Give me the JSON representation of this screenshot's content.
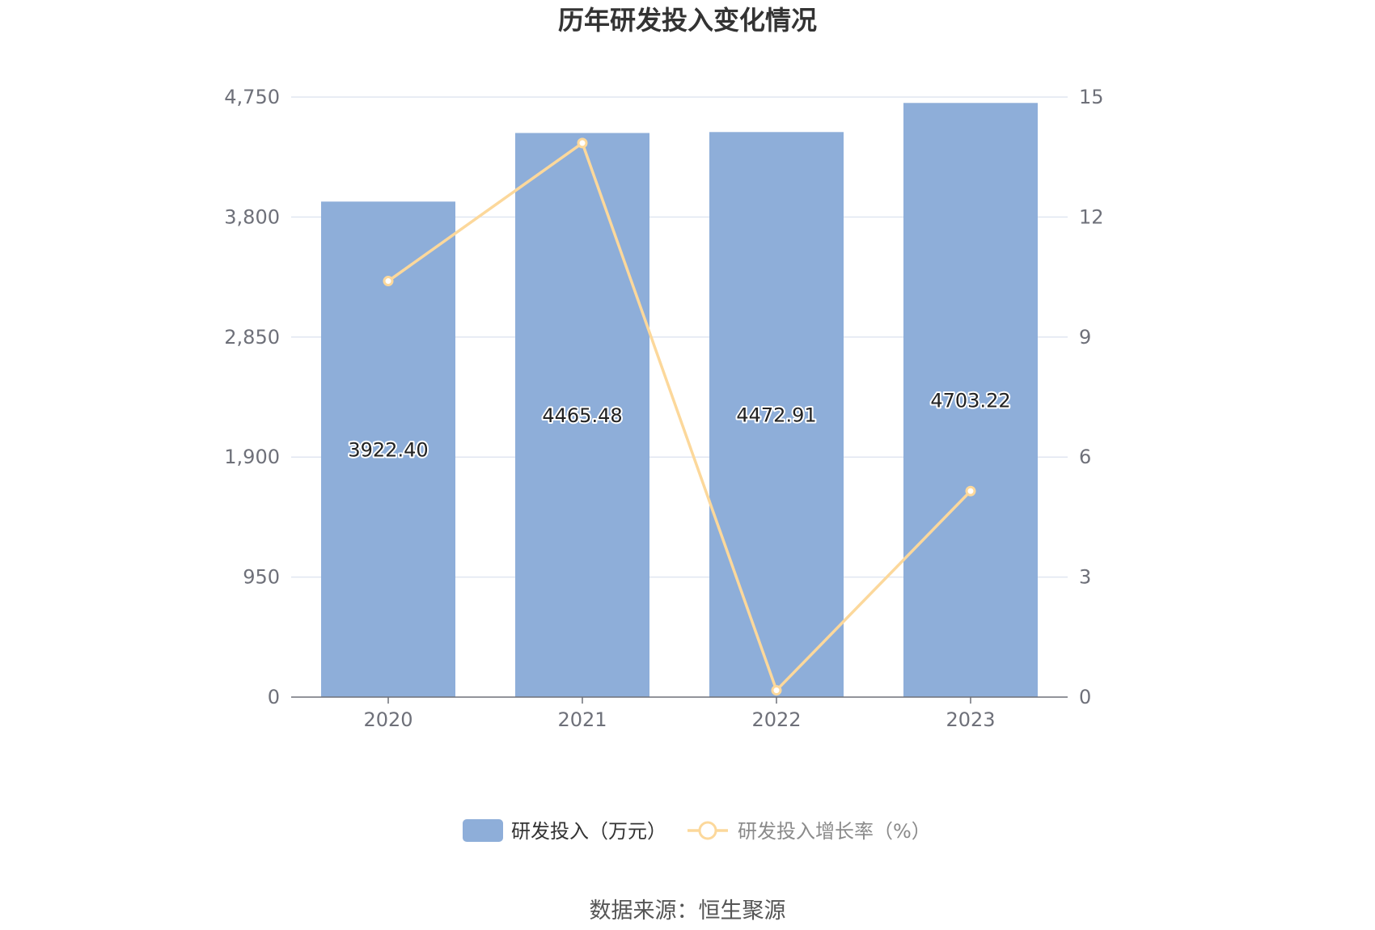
{
  "chart_data": {
    "type": "bar",
    "title": "历年研发投入变化情况",
    "categories": [
      "2020",
      "2021",
      "2022",
      "2023"
    ],
    "series": [
      {
        "name": "研发投入（万元）",
        "type": "bar",
        "axis": "left",
        "color": "#8eaed9",
        "values": [
          3922.4,
          4465.48,
          4472.91,
          4703.22
        ],
        "labels": [
          "3922.40",
          "4465.48",
          "4472.91",
          "4703.22"
        ]
      },
      {
        "name": "研发投入增长率（%）",
        "type": "line",
        "axis": "right",
        "color": "#fcd89b",
        "values": [
          10.4,
          13.85,
          0.17,
          5.15
        ]
      }
    ],
    "y_left": {
      "ylim": [
        0,
        4750
      ],
      "ticks": [
        0,
        950,
        1900,
        2850,
        3800,
        4750
      ],
      "tick_labels": [
        "0",
        "950",
        "1,900",
        "2,850",
        "3,800",
        "4,750"
      ]
    },
    "y_right": {
      "ylim": [
        0,
        15
      ],
      "ticks": [
        0,
        3,
        6,
        9,
        12,
        15
      ],
      "tick_labels": [
        "0",
        "3",
        "6",
        "9",
        "12",
        "15"
      ]
    },
    "grid": true,
    "legend_position": "bottom-center"
  },
  "source_text": "数据来源：恒生聚源"
}
